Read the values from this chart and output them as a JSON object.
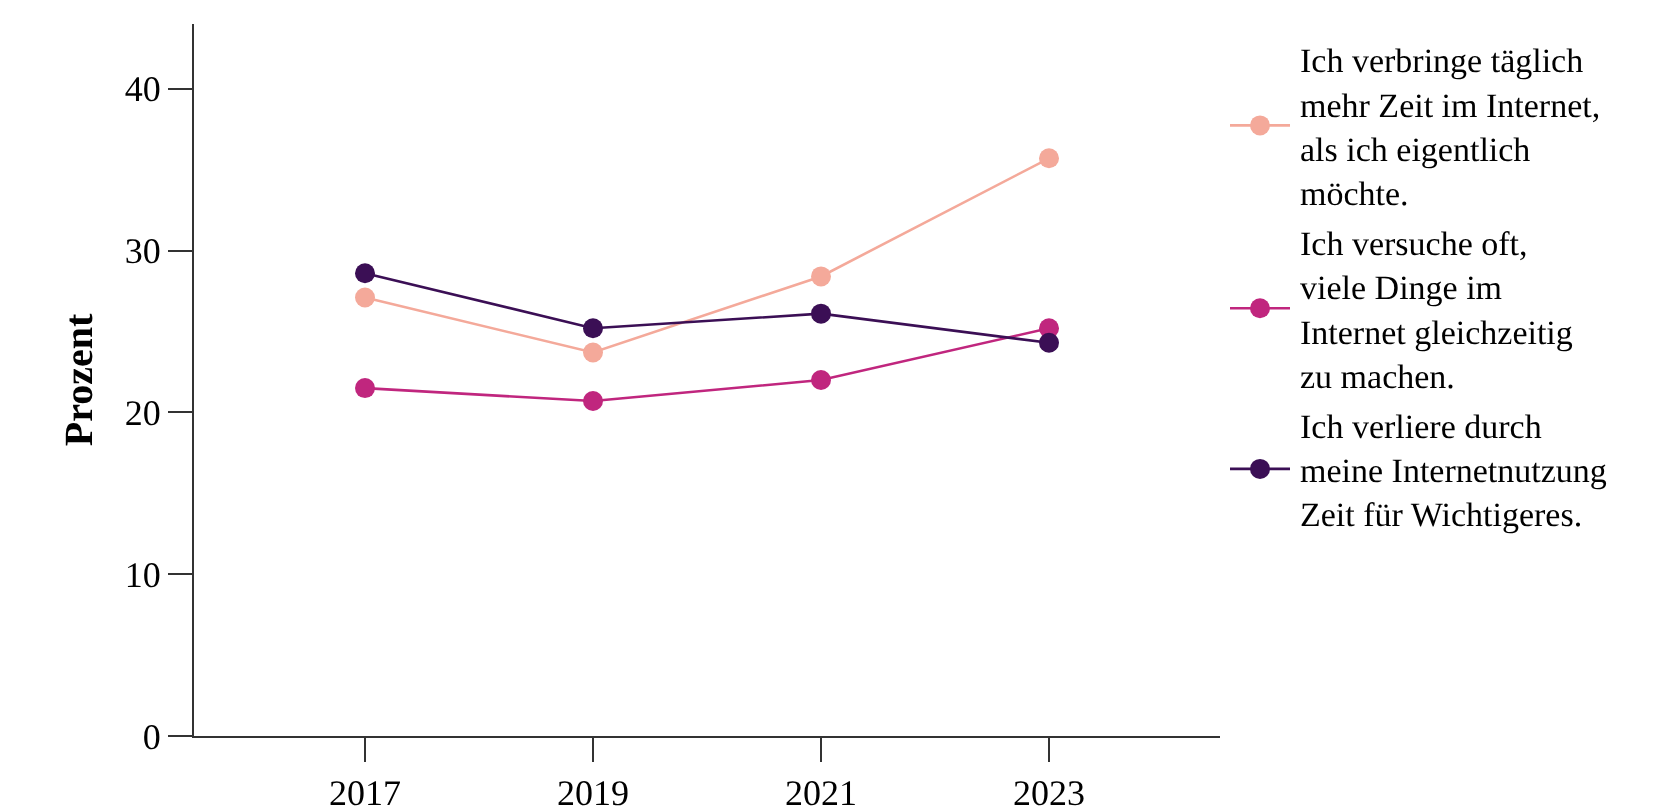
{
  "chart_data": {
    "type": "line",
    "ylabel": "Prozent",
    "x": [
      2017,
      2019,
      2021,
      2023
    ],
    "xlim": [
      2015.5,
      2024.5
    ],
    "xticks": [
      2017,
      2019,
      2021,
      2023
    ],
    "ylim": [
      0,
      44
    ],
    "yticks": [
      0,
      10,
      20,
      30,
      40
    ],
    "grid": false,
    "legend": "right",
    "marker": "circle",
    "line_style": "solid",
    "series": [
      {
        "name": "Ich verbringe täglich mehr Zeit im Internet, als ich eigentlich möchte.",
        "color": "#f4a99a",
        "values": [
          27.1,
          23.7,
          28.4,
          35.7
        ]
      },
      {
        "name": "Ich versuche oft, viele Dinge im Internet gleichzeitig zu machen.",
        "color": "#c0267e",
        "values": [
          21.5,
          20.7,
          22.0,
          25.2
        ]
      },
      {
        "name": "Ich verliere durch meine Internetnutzung Zeit für Wichtigeres.",
        "color": "#3b0f55",
        "values": [
          28.6,
          25.2,
          26.1,
          24.3
        ]
      }
    ]
  }
}
